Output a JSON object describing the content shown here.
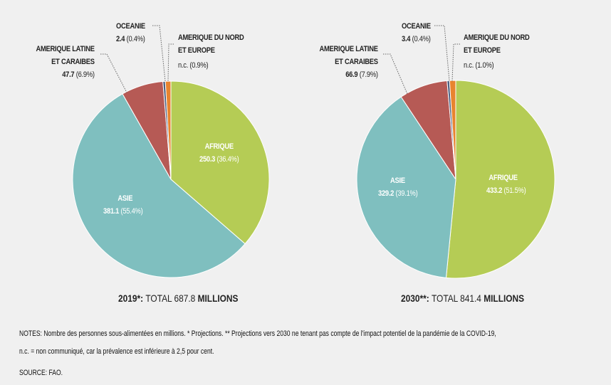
{
  "colors": {
    "afrique": "#b5cc55",
    "asie": "#7fbfbf",
    "amerique_latine": "#b65a55",
    "oceanie": "#4b5f80",
    "amerique_nord": "#e8842f"
  },
  "chart_data": [
    {
      "type": "pie",
      "title": "2019*: TOTAL 687.8 MILLIONS",
      "title_year": "2019*:",
      "title_total": "TOTAL 687.8",
      "title_unit": "MILLIONS",
      "slices": [
        {
          "key": "afrique",
          "name": "AFRIQUE",
          "value": 250.3,
          "value_label": "250.3",
          "pct": 36.4,
          "pct_label": "(36.4%)"
        },
        {
          "key": "asie",
          "name": "ASIE",
          "value": 381.1,
          "value_label": "381.1",
          "pct": 55.4,
          "pct_label": "(55.4%)"
        },
        {
          "key": "amerique_latine",
          "name_line1": "AMERIQUE LATINE",
          "name_line2": "ET CARAIBES",
          "value": 47.7,
          "value_label": "47.7",
          "pct": 6.9,
          "pct_label": "(6.9%)"
        },
        {
          "key": "oceanie",
          "name": "OCEANIE",
          "value": 2.4,
          "value_label": "2.4",
          "pct": 0.4,
          "pct_label": "(0.4%)"
        },
        {
          "key": "amerique_nord",
          "name_line1": "AMERIQUE DU NORD",
          "name_line2": "ET EUROPE",
          "value_label": "n.c.",
          "pct": 0.9,
          "pct_label": "(0.9%)"
        }
      ]
    },
    {
      "type": "pie",
      "title": "2030**: TOTAL 841.4 MILLIONS",
      "title_year": "2030**:",
      "title_total": "TOTAL 841.4",
      "title_unit": "MILLIONS",
      "slices": [
        {
          "key": "afrique",
          "name": "AFRIQUE",
          "value": 433.2,
          "value_label": "433.2",
          "pct": 51.5,
          "pct_label": "(51.5%)"
        },
        {
          "key": "asie",
          "name": "ASIE",
          "value": 329.2,
          "value_label": "329.2",
          "pct": 39.1,
          "pct_label": "(39.1%)"
        },
        {
          "key": "amerique_latine",
          "name_line1": "AMERIQUE LATINE",
          "name_line2": "ET CARAIBES",
          "value": 66.9,
          "value_label": "66.9",
          "pct": 7.9,
          "pct_label": "(7.9%)"
        },
        {
          "key": "oceanie",
          "name": "OCEANIE",
          "value": 3.4,
          "value_label": "3.4",
          "pct": 0.4,
          "pct_label": "(0.4%)"
        },
        {
          "key": "amerique_nord",
          "name_line1": "AMERIQUE DU NORD",
          "name_line2": "ET EUROPE",
          "value_label": "n.c.",
          "pct": 1.0,
          "pct_label": "(1.0%)"
        }
      ]
    }
  ],
  "notes": {
    "line1": "NOTES: Nombre des personnes sous-alimentées en millions. * Projections.  ** Projections vers 2030 ne tenant pas compte de l'impact potentiel de la pandémie de la COVID-19,",
    "line2": "n.c. = non communiqué, car la prévalence est inférieure à 2,5 pour cent.",
    "source": "SOURCE: FAO."
  }
}
